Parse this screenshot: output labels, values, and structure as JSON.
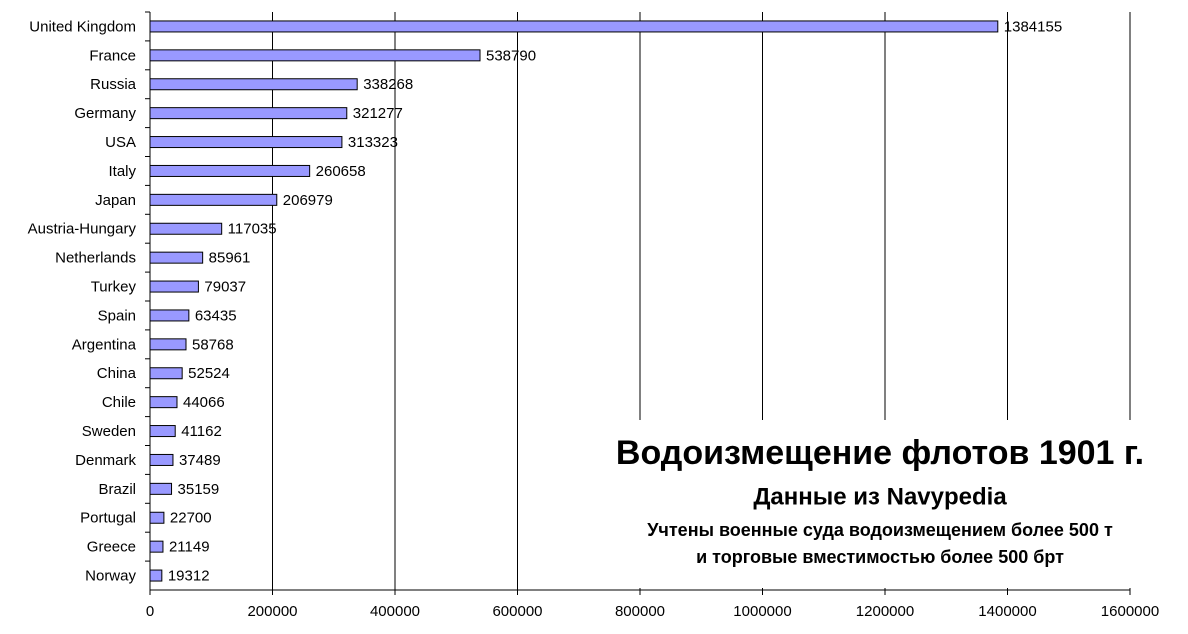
{
  "chart_data": {
    "type": "bar",
    "orientation": "horizontal",
    "title": "Водоизмещение флотов 1901 г.",
    "subtitle": "Данные из Navypedia",
    "notes": [
      "Учтены военные суда водоизмещением более 500 т",
      "и торговые вместимостью более 500 брт"
    ],
    "categories": [
      "United Kingdom",
      "France",
      "Russia",
      "Germany",
      "USA",
      "Italy",
      "Japan",
      "Austria-Hungary",
      "Netherlands",
      "Turkey",
      "Spain",
      "Argentina",
      "China",
      "Chile",
      "Sweden",
      "Denmark",
      "Brazil",
      "Portugal",
      "Greece",
      "Norway"
    ],
    "values": [
      1384155,
      538790,
      338268,
      321277,
      313323,
      260658,
      206979,
      117035,
      85961,
      79037,
      63435,
      58768,
      52524,
      44066,
      41162,
      37489,
      35159,
      22700,
      21149,
      19312
    ],
    "color": "#9999ff",
    "xlim": [
      0,
      1600000
    ],
    "xticks": [
      0,
      200000,
      400000,
      600000,
      800000,
      1000000,
      1200000,
      1400000,
      1600000
    ],
    "grid": true
  }
}
